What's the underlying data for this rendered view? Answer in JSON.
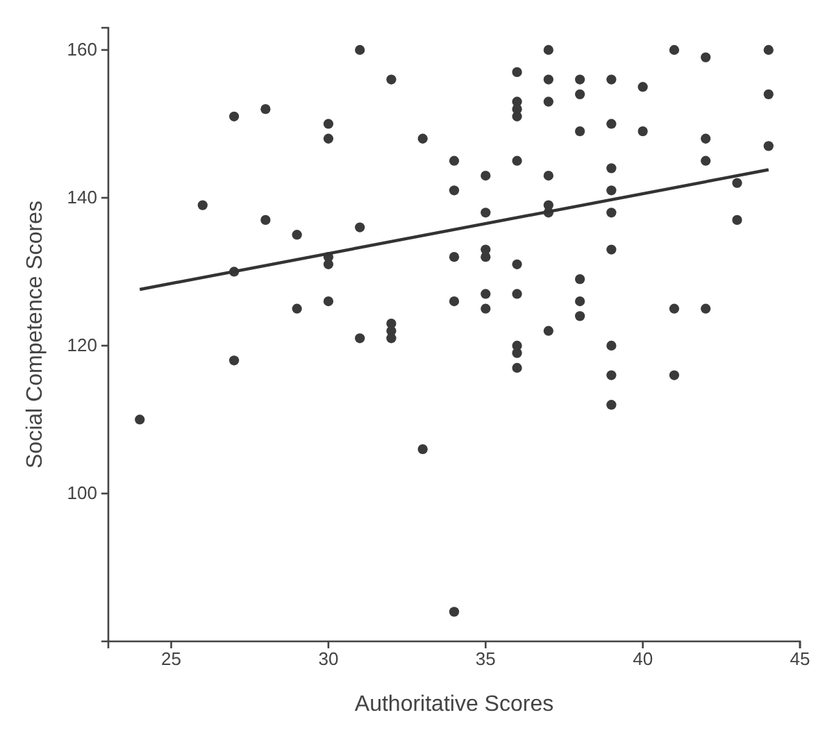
{
  "chart_data": {
    "type": "scatter",
    "xlabel": "Authoritative Scores",
    "ylabel": "Social Competence Scores",
    "xlim": [
      23,
      45
    ],
    "xticks": [
      25,
      30,
      35,
      40,
      45
    ],
    "ylim": [
      80,
      163
    ],
    "yticks": [
      100,
      120,
      140,
      160
    ],
    "grid": false,
    "series": [
      {
        "color": "#3a3a3a",
        "marker": "circle",
        "x": [
          24,
          26,
          27,
          27,
          27,
          28,
          28,
          29,
          29,
          30,
          30,
          30,
          30,
          30,
          31,
          31,
          31,
          32,
          32,
          32,
          32,
          33,
          33,
          34,
          34,
          34,
          34,
          34,
          35,
          35,
          35,
          35,
          35,
          35,
          36,
          36,
          36,
          36,
          36,
          36,
          36,
          36,
          36,
          36,
          37,
          37,
          37,
          37,
          37,
          37,
          37,
          38,
          38,
          38,
          38,
          38,
          38,
          39,
          39,
          39,
          39,
          39,
          39,
          39,
          39,
          39,
          40,
          40,
          41,
          41,
          41,
          42,
          42,
          42,
          42,
          43,
          43,
          44,
          44,
          44
        ],
        "values": [
          110,
          139,
          151,
          130,
          118,
          152,
          137,
          135,
          125,
          150,
          148,
          132,
          131,
          126,
          160,
          136,
          121,
          156,
          123,
          122,
          121,
          148,
          106,
          145,
          141,
          132,
          126,
          84,
          143,
          138,
          133,
          132,
          127,
          125,
          157,
          153,
          152,
          151,
          145,
          131,
          127,
          120,
          119,
          117,
          160,
          156,
          153,
          143,
          139,
          138,
          122,
          156,
          154,
          149,
          129,
          126,
          124,
          156,
          150,
          144,
          141,
          138,
          133,
          120,
          116,
          112,
          155,
          149,
          160,
          125,
          116,
          159,
          148,
          145,
          125,
          142,
          137,
          160,
          154,
          147
        ]
      },
      {
        "type": "line",
        "color": "#333333",
        "line_style": "solid",
        "x": [
          24,
          44
        ],
        "values": [
          127.6,
          143.8
        ]
      }
    ]
  }
}
